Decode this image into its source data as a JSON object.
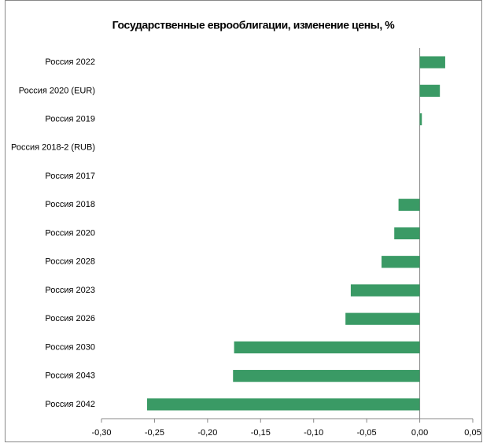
{
  "chart_data": {
    "type": "barh",
    "title": "Государственные еврооблигации, изменение цены, %",
    "categories": [
      "Россия 2022",
      "Россия 2020 (EUR)",
      "Россия 2019",
      "Россия 2018-2 (RUB)",
      "Россия 2017",
      "Россия 2018",
      "Россия 2020",
      "Россия 2028",
      "Россия 2023",
      "Россия 2026",
      "Россия 2030",
      "Россия 2043",
      "Россия 2042"
    ],
    "values": [
      0.024,
      0.019,
      0.002,
      0,
      0,
      -0.02,
      -0.024,
      -0.036,
      -0.065,
      -0.07,
      -0.175,
      -0.176,
      -0.257
    ],
    "color": "#3a9a65",
    "xlim": [
      -0.3,
      0.05
    ],
    "xticks": [
      {
        "value": -0.3,
        "label": "-0,30"
      },
      {
        "value": -0.25,
        "label": "-0,25"
      },
      {
        "value": -0.2,
        "label": "-0,20"
      },
      {
        "value": -0.15,
        "label": "-0,15"
      },
      {
        "value": -0.1,
        "label": "-0,10"
      },
      {
        "value": -0.05,
        "label": "-0,05"
      },
      {
        "value": 0,
        "label": "0,00"
      },
      {
        "value": 0.05,
        "label": "0,05"
      }
    ],
    "grid": false
  }
}
